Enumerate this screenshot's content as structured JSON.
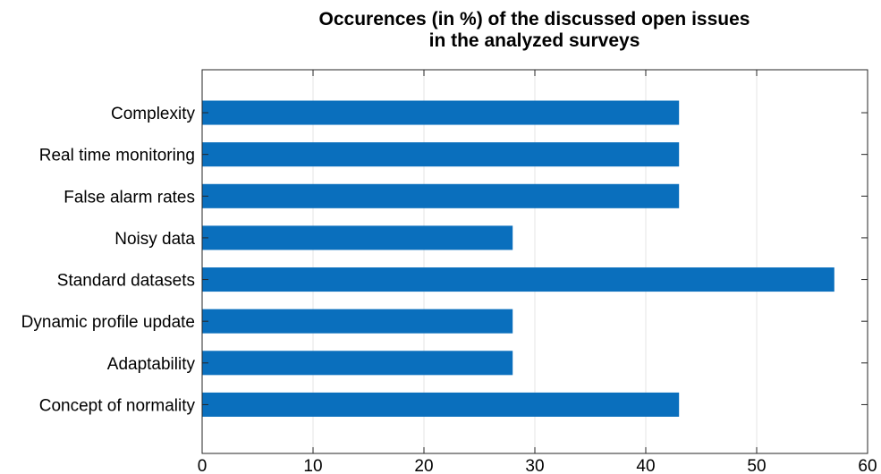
{
  "chart_data": {
    "type": "bar",
    "orientation": "horizontal",
    "title": "Occurences (in %) of the discussed open issues in the analyzed surveys",
    "title_lines": [
      "Occurences (in %) of the discussed open issues",
      "in the analyzed surveys"
    ],
    "categories": [
      "Complexity",
      "Real time monitoring",
      "False alarm rates",
      "Noisy data",
      "Standard datasets",
      "Dynamic profile update",
      "Adaptability",
      "Concept of normality"
    ],
    "values": [
      43,
      43,
      43,
      28,
      57,
      28,
      28,
      43
    ],
    "xlim": [
      0,
      60
    ],
    "xticks": [
      0,
      10,
      20,
      30,
      40,
      50,
      60
    ],
    "xlabel": "",
    "ylabel": "",
    "grid": "vertical",
    "bar_color": "#0a6fbd",
    "grid_color": "#e6e6e6",
    "axis_color": "#262626"
  }
}
